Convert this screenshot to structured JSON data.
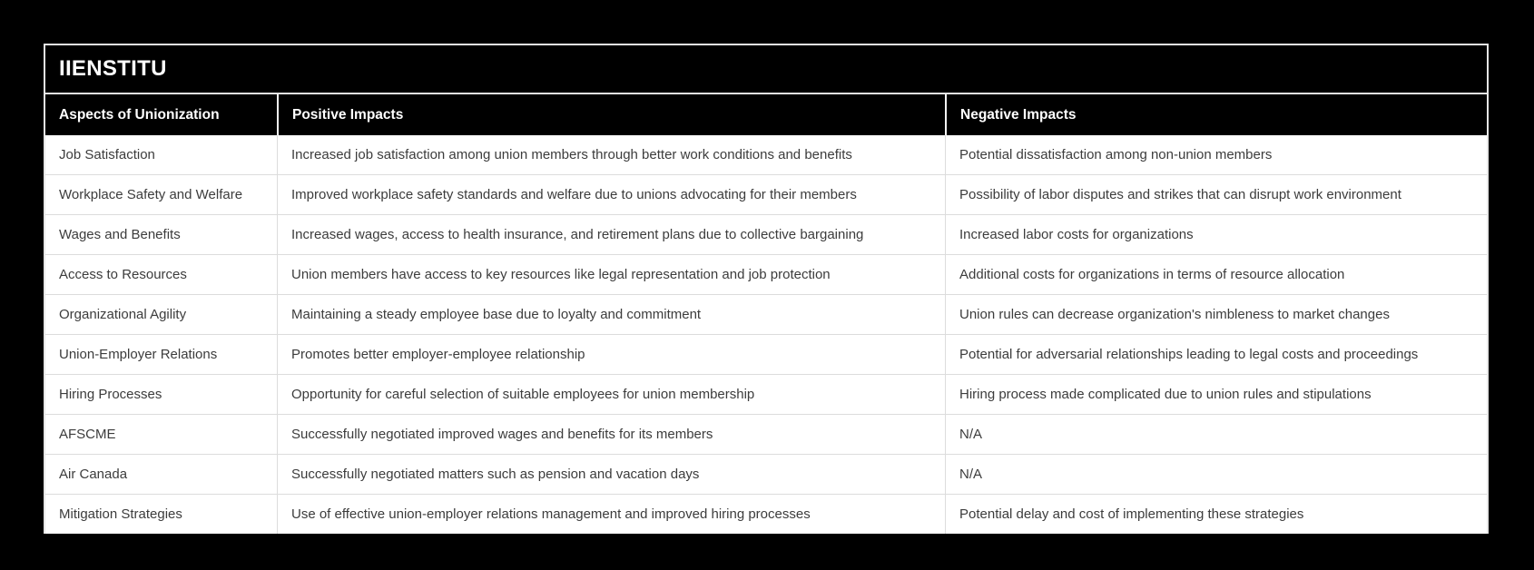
{
  "chart_data": {
    "type": "table",
    "title": "IIENSTITU",
    "columns": [
      "Aspects of Unionization",
      "Positive Impacts",
      "Negative Impacts"
    ],
    "rows": [
      [
        "Job Satisfaction",
        "Increased job satisfaction among union members through better work conditions and benefits",
        "Potential dissatisfaction among non-union members"
      ],
      [
        "Workplace Safety and Welfare",
        "Improved workplace safety standards and welfare due to unions advocating for their members",
        "Possibility of labor disputes and strikes that can disrupt work environment"
      ],
      [
        "Wages and Benefits",
        "Increased wages, access to health insurance, and retirement plans due to collective bargaining",
        "Increased labor costs for organizations"
      ],
      [
        "Access to Resources",
        "Union members have access to key resources like legal representation and job protection",
        "Additional costs for organizations in terms of resource allocation"
      ],
      [
        "Organizational Agility",
        "Maintaining a steady employee base due to loyalty and commitment",
        "Union rules can decrease organization's nimbleness to market changes"
      ],
      [
        "Union-Employer Relations",
        "Promotes better employer-employee relationship",
        "Potential for adversarial relationships leading to legal costs and proceedings"
      ],
      [
        "Hiring Processes",
        "Opportunity for careful selection of suitable employees for union membership",
        "Hiring process made complicated due to union rules and stipulations"
      ],
      [
        "AFSCME",
        "Successfully negotiated improved wages and benefits for its members",
        "N/A"
      ],
      [
        "Air Canada",
        "Successfully negotiated matters such as pension and vacation days",
        "N/A"
      ],
      [
        "Mitigation Strategies",
        "Use of effective union-employer relations management and improved hiring processes",
        "Potential delay and cost of implementing these strategies"
      ]
    ],
    "layout_hints": {
      "header_position": "top",
      "title_position": "top-left",
      "grid": "on"
    }
  },
  "colors": {
    "page_background": "#000000",
    "title_band_background": "#000000",
    "header_row_background": "#000000",
    "header_text": "#ffffff",
    "title_text": "#ffffff",
    "row_background": "#ffffff",
    "body_text": "#3c3c3c",
    "row_divider": "#dcdcdc",
    "outer_border": "#e6e6e6"
  }
}
